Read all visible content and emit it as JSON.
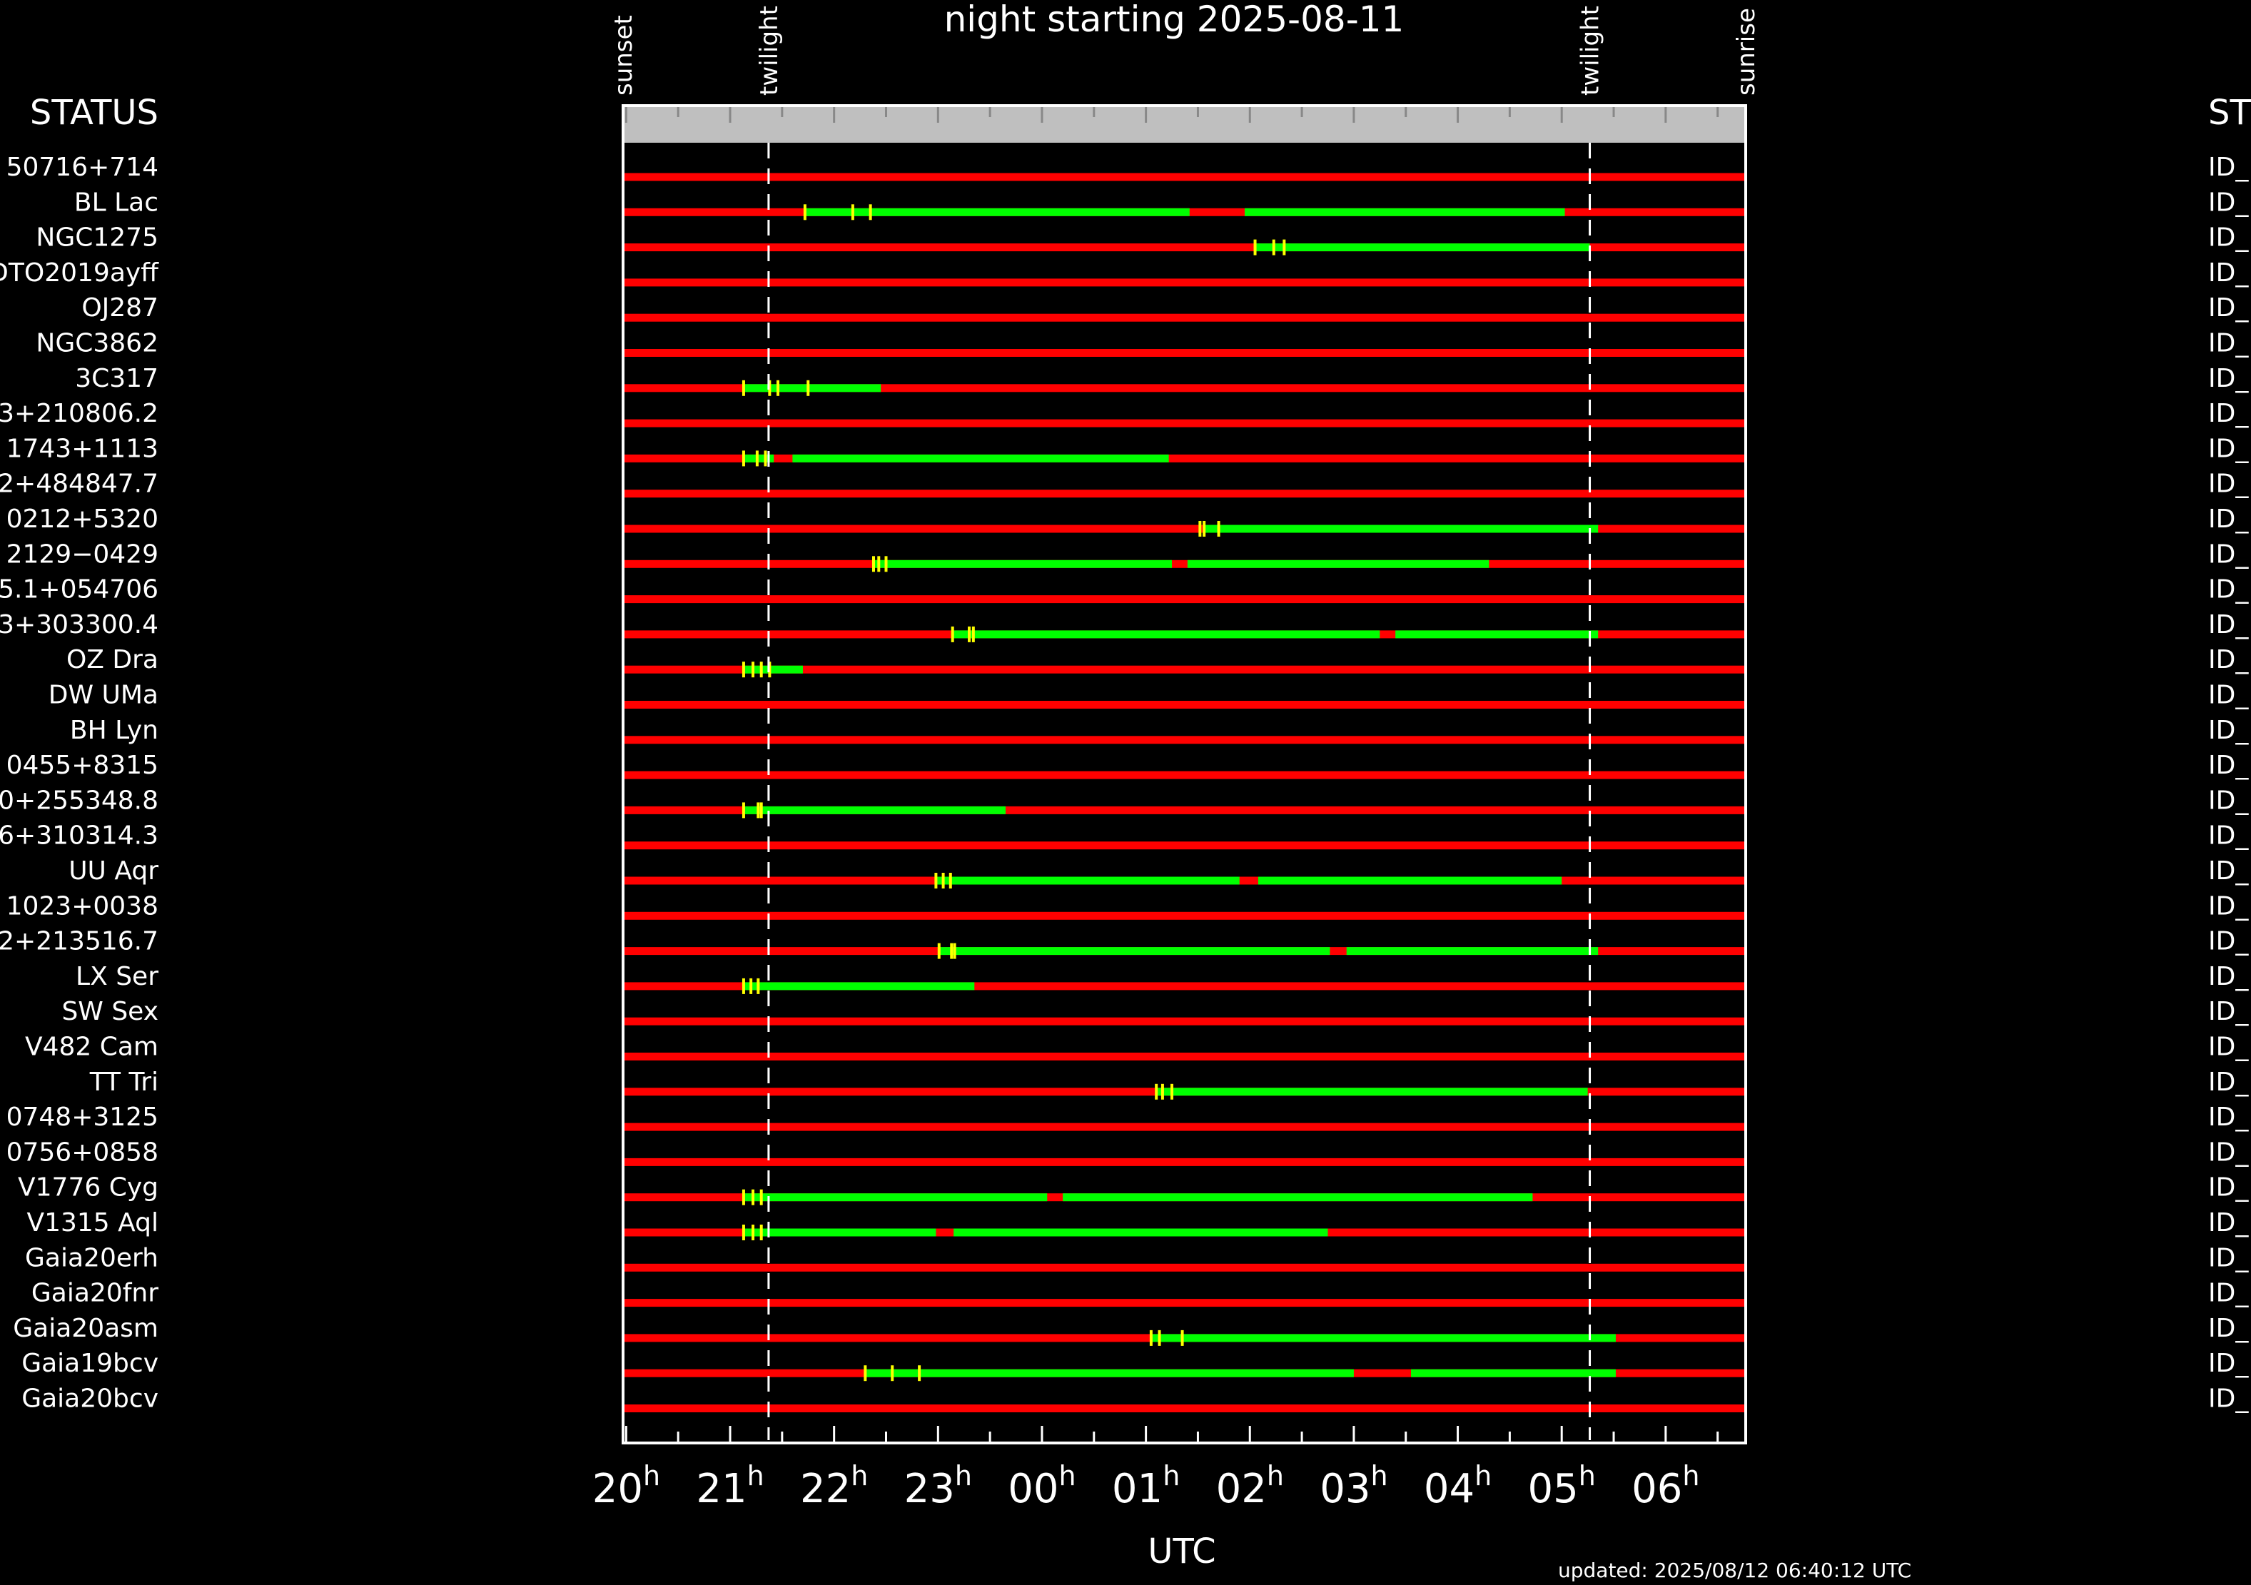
{
  "chart_data": {
    "type": "timeline",
    "title": "night starting 2025-08-11",
    "xlabel": "UTC",
    "updated": "updated: 2025/08/12 06:40:12 UTC",
    "left_header": "STATUS",
    "right_header": "ST",
    "id_prefix": "ID_",
    "x_ticks": [
      {
        "hour": 20,
        "text": "20",
        "sup": "h"
      },
      {
        "hour": 21,
        "text": "21",
        "sup": "h"
      },
      {
        "hour": 22,
        "text": "22",
        "sup": "h"
      },
      {
        "hour": 23,
        "text": "23",
        "sup": "h"
      },
      {
        "hour": 24,
        "text": "00",
        "sup": "h"
      },
      {
        "hour": 25,
        "text": "01",
        "sup": "h"
      },
      {
        "hour": 26,
        "text": "02",
        "sup": "h"
      },
      {
        "hour": 27,
        "text": "03",
        "sup": "h"
      },
      {
        "hour": 28,
        "text": "04",
        "sup": "h"
      },
      {
        "hour": 29,
        "text": "05",
        "sup": "h"
      },
      {
        "hour": 30,
        "text": "06",
        "sup": "h"
      }
    ],
    "x_range": [
      19.97,
      30.77
    ],
    "events": [
      {
        "label": "sunset",
        "hour": 19.97,
        "dashed": false
      },
      {
        "label": "twilight",
        "hour": 21.37,
        "dashed": true
      },
      {
        "label": "twilight",
        "hour": 29.27,
        "dashed": true
      },
      {
        "label": "sunrise",
        "hour": 30.77,
        "dashed": false
      }
    ],
    "colors": {
      "unobservable": "#ff0000",
      "observable": "#00ff00",
      "marker": "#ffff00",
      "band": "#bfbfbf"
    },
    "targets": [
      {
        "name": "50716+714",
        "green": [],
        "markers": []
      },
      {
        "name": "BL Lac",
        "green": [
          [
            21.72,
            25.42
          ],
          [
            25.95,
            29.03
          ]
        ],
        "markers": [
          21.72,
          22.18,
          22.35
        ]
      },
      {
        "name": "NGC1275",
        "green": [
          [
            26.05,
            29.27
          ]
        ],
        "markers": [
          26.05,
          26.23,
          26.33
        ]
      },
      {
        "name": "DTO2019ayff",
        "green": [],
        "markers": []
      },
      {
        "name": "OJ287",
        "green": [],
        "markers": []
      },
      {
        "name": "NGC3862",
        "green": [],
        "markers": []
      },
      {
        "name": "3C317",
        "green": [
          [
            21.13,
            22.45
          ]
        ],
        "markers": [
          21.13,
          21.38,
          21.46,
          21.75
        ]
      },
      {
        "name": "3+210806.2",
        "green": [],
        "markers": []
      },
      {
        "name": "1743+1113",
        "green": [
          [
            21.13,
            21.42
          ],
          [
            21.6,
            25.22
          ]
        ],
        "markers": [
          21.13,
          21.26,
          21.34
        ]
      },
      {
        "name": "2+484847.7",
        "green": [],
        "markers": []
      },
      {
        "name": "0212+5320",
        "green": [
          [
            25.55,
            29.35
          ]
        ],
        "markers": [
          25.52,
          25.56,
          25.7
        ]
      },
      {
        "name": "2129−0429",
        "green": [
          [
            22.38,
            25.25
          ],
          [
            25.4,
            28.3
          ]
        ],
        "markers": [
          22.38,
          22.43,
          22.5
        ]
      },
      {
        "name": "5.1+054706",
        "green": [],
        "markers": []
      },
      {
        "name": "3+303300.4",
        "green": [
          [
            23.15,
            27.25
          ],
          [
            27.4,
            29.35
          ]
        ],
        "markers": [
          23.14,
          23.3,
          23.34
        ]
      },
      {
        "name": "OZ Dra",
        "green": [
          [
            21.13,
            21.7
          ]
        ],
        "markers": [
          21.13,
          21.22,
          21.3,
          21.38
        ]
      },
      {
        "name": "DW UMa",
        "green": [],
        "markers": []
      },
      {
        "name": "BH Lyn",
        "green": [],
        "markers": []
      },
      {
        "name": "0455+8315",
        "green": [],
        "markers": []
      },
      {
        "name": "0+255348.8",
        "green": [
          [
            21.13,
            23.65
          ]
        ],
        "markers": [
          21.13,
          21.27,
          21.3
        ]
      },
      {
        "name": "6+310314.3",
        "green": [],
        "markers": []
      },
      {
        "name": "UU Aqr",
        "green": [
          [
            22.98,
            25.9
          ],
          [
            26.08,
            29.0
          ]
        ],
        "markers": [
          22.98,
          23.05,
          23.12
        ]
      },
      {
        "name": "1023+0038",
        "green": [],
        "markers": []
      },
      {
        "name": "2+213516.7",
        "green": [
          [
            23.0,
            26.77
          ],
          [
            26.93,
            29.35
          ]
        ],
        "markers": [
          23.01,
          23.13,
          23.16
        ]
      },
      {
        "name": "LX Ser",
        "green": [
          [
            21.13,
            23.35
          ]
        ],
        "markers": [
          21.13,
          21.2,
          21.27
        ]
      },
      {
        "name": "SW Sex",
        "green": [],
        "markers": []
      },
      {
        "name": "V482 Cam",
        "green": [],
        "markers": []
      },
      {
        "name": "TT Tri",
        "green": [
          [
            25.1,
            29.25
          ]
        ],
        "markers": [
          25.1,
          25.16,
          25.25
        ]
      },
      {
        "name": "0748+3125",
        "green": [],
        "markers": []
      },
      {
        "name": "0756+0858",
        "green": [],
        "markers": []
      },
      {
        "name": "V1776 Cyg",
        "green": [
          [
            21.13,
            24.05
          ],
          [
            24.2,
            28.72
          ]
        ],
        "markers": [
          21.13,
          21.22,
          21.3
        ]
      },
      {
        "name": "V1315 Aql",
        "green": [
          [
            21.13,
            22.98
          ],
          [
            23.15,
            26.75
          ]
        ],
        "markers": [
          21.13,
          21.22,
          21.3
        ]
      },
      {
        "name": "Gaia20erh",
        "green": [],
        "markers": []
      },
      {
        "name": "Gaia20fnr",
        "green": [],
        "markers": []
      },
      {
        "name": "Gaia20asm",
        "green": [
          [
            25.05,
            29.52
          ]
        ],
        "markers": [
          25.05,
          25.13,
          25.35
        ]
      },
      {
        "name": "Gaia19bcv",
        "green": [
          [
            22.3,
            27.0
          ],
          [
            27.55,
            29.52
          ]
        ],
        "markers": [
          22.3,
          22.56,
          22.82
        ]
      },
      {
        "name": "Gaia20bcv",
        "green": [],
        "markers": []
      }
    ]
  }
}
